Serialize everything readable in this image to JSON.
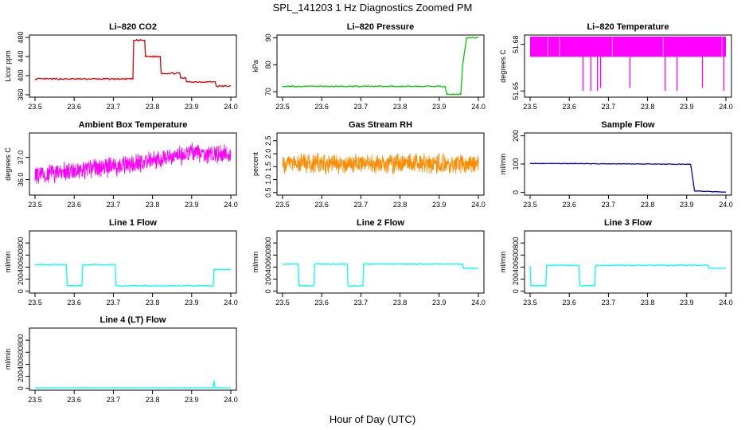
{
  "figure": {
    "title": "SPL_141203  1 Hz Diagnostics Zoomed PM",
    "xlabel": "Hour of Day (UTC)"
  },
  "chart_data": [
    {
      "type": "line",
      "title": "Li–820 CO2",
      "ylabel": "Licor ppm",
      "color": "#dd0000",
      "xlim": [
        23.5,
        24.0
      ],
      "ylim": [
        355,
        485
      ],
      "xticks": [
        "23.5",
        "23.6",
        "23.7",
        "23.8",
        "23.9",
        "24.0"
      ],
      "yticks": [
        {
          "v": 360,
          "label": "360"
        },
        {
          "v": 400,
          "label": "400"
        },
        {
          "v": 440,
          "label": "440"
        },
        {
          "v": 480,
          "label": "480"
        }
      ],
      "noise": 1.5,
      "points": [
        [
          23.5,
          393
        ],
        [
          23.6,
          393
        ],
        [
          23.7,
          393
        ],
        [
          23.75,
          393
        ],
        [
          23.752,
          474
        ],
        [
          23.78,
          474
        ],
        [
          23.782,
          440
        ],
        [
          23.82,
          440
        ],
        [
          23.822,
          405
        ],
        [
          23.87,
          405
        ],
        [
          23.872,
          395
        ],
        [
          23.885,
          395
        ],
        [
          23.887,
          387
        ],
        [
          23.96,
          387
        ],
        [
          23.963,
          378
        ],
        [
          24.0,
          378
        ]
      ]
    },
    {
      "type": "line",
      "title": "Li–820 Pressure",
      "ylabel": "kPa",
      "color": "#00cc00",
      "xlim": [
        23.5,
        24.0
      ],
      "ylim": [
        68,
        91
      ],
      "xticks": [
        "23.5",
        "23.6",
        "23.7",
        "23.8",
        "23.9",
        "24.0"
      ],
      "yticks": [
        {
          "v": 70,
          "label": "70"
        },
        {
          "v": 80,
          "label": "80"
        },
        {
          "v": 90,
          "label": "90"
        }
      ],
      "noise": 0.2,
      "points": [
        [
          23.5,
          72
        ],
        [
          23.7,
          72
        ],
        [
          23.9,
          72
        ],
        [
          23.915,
          72
        ],
        [
          23.92,
          69
        ],
        [
          23.955,
          69
        ],
        [
          23.96,
          80
        ],
        [
          23.97,
          90
        ],
        [
          24.0,
          90
        ]
      ]
    },
    {
      "type": "band",
      "title": "Li–820 Temperature",
      "ylabel": "degrees C",
      "color": "#ff00ff",
      "xlim": [
        23.5,
        24.0
      ],
      "ylim": [
        51.646,
        51.686
      ],
      "xticks": [
        "23.5",
        "23.6",
        "23.7",
        "23.8",
        "23.9",
        "24.0"
      ],
      "yticks": [
        {
          "v": 51.65,
          "label": "51.65"
        },
        {
          "v": 51.68,
          "label": "51.68"
        }
      ],
      "band": [
        51.672,
        51.685
      ],
      "dips": [
        [
          23.635,
          51.65
        ],
        [
          23.655,
          51.65
        ],
        [
          23.672,
          51.65
        ],
        [
          23.68,
          51.652
        ],
        [
          23.755,
          51.652
        ],
        [
          23.845,
          51.65
        ],
        [
          23.875,
          51.65
        ],
        [
          23.94,
          51.652
        ],
        [
          23.995,
          51.65
        ]
      ]
    },
    {
      "type": "noise",
      "title": "Ambient Box Temperature",
      "ylabel": "degrees C",
      "color": "#ff00ff",
      "xlim": [
        23.5,
        24.0
      ],
      "ylim": [
        35.3,
        38.1
      ],
      "xticks": [
        "23.5",
        "23.6",
        "23.7",
        "23.8",
        "23.9",
        "24.0"
      ],
      "yticks": [
        {
          "v": 36.0,
          "label": "36.0"
        },
        {
          "v": 37.0,
          "label": "37.0"
        }
      ],
      "trend": [
        [
          23.5,
          36.2
        ],
        [
          23.75,
          36.7
        ],
        [
          23.9,
          37.2
        ],
        [
          24.0,
          37.1
        ]
      ],
      "amp": 0.5
    },
    {
      "type": "noise",
      "title": "Gas Stream RH",
      "ylabel": "percent",
      "color": "#ff8c00",
      "xlim": [
        23.5,
        24.0
      ],
      "ylim": [
        0.4,
        2.8
      ],
      "xticks": [
        "23.5",
        "23.6",
        "23.7",
        "23.8",
        "23.9",
        "24.0"
      ],
      "yticks": [
        {
          "v": 0.5,
          "label": "0.5"
        },
        {
          "v": 1.0,
          "label": "1.0"
        },
        {
          "v": 1.5,
          "label": "1.5"
        },
        {
          "v": 2.0,
          "label": "2.0"
        },
        {
          "v": 2.5,
          "label": "2.5"
        }
      ],
      "trend": [
        [
          23.5,
          1.62
        ],
        [
          24.0,
          1.62
        ]
      ],
      "amp": 0.45
    },
    {
      "type": "line",
      "title": "Sample Flow",
      "ylabel": "ml/min",
      "color": "#0000cc",
      "xlim": [
        23.5,
        24.0
      ],
      "ylim": [
        -10,
        210
      ],
      "xticks": [
        "23.5",
        "23.6",
        "23.7",
        "23.8",
        "23.9",
        "24.0"
      ],
      "yticks": [
        {
          "v": 0,
          "label": "0"
        },
        {
          "v": 100,
          "label": "100"
        },
        {
          "v": 200,
          "label": "200"
        }
      ],
      "noise": 1.0,
      "points": [
        [
          23.5,
          102
        ],
        [
          23.7,
          101
        ],
        [
          23.91,
          99
        ],
        [
          23.92,
          5
        ],
        [
          24.0,
          0
        ]
      ]
    },
    {
      "type": "line",
      "title": "Line 1 Flow",
      "ylabel": "ml/min",
      "color": "#00ffff",
      "xlim": [
        23.5,
        24.0
      ],
      "ylim": [
        -30,
        1000
      ],
      "xticks": [
        "23.5",
        "23.6",
        "23.7",
        "23.8",
        "23.9",
        "24.0"
      ],
      "yticks": [
        {
          "v": 0,
          "label": "0"
        },
        {
          "v": 200,
          "label": "200"
        },
        {
          "v": 400,
          "label": "400"
        },
        {
          "v": 600,
          "label": "600"
        },
        {
          "v": 800,
          "label": "800"
        }
      ],
      "noise": 8,
      "points": [
        [
          23.5,
          440
        ],
        [
          23.58,
          440
        ],
        [
          23.582,
          90
        ],
        [
          23.62,
          90
        ],
        [
          23.622,
          440
        ],
        [
          23.705,
          440
        ],
        [
          23.707,
          90
        ],
        [
          23.955,
          90
        ],
        [
          23.957,
          360
        ],
        [
          24.0,
          360
        ]
      ]
    },
    {
      "type": "line",
      "title": "Line 2 Flow",
      "ylabel": "ml/min",
      "color": "#00ffff",
      "xlim": [
        23.5,
        24.0
      ],
      "ylim": [
        -30,
        1000
      ],
      "xticks": [
        "23.5",
        "23.6",
        "23.7",
        "23.8",
        "23.9",
        "24.0"
      ],
      "yticks": [
        {
          "v": 0,
          "label": "0"
        },
        {
          "v": 200,
          "label": "200"
        },
        {
          "v": 400,
          "label": "400"
        },
        {
          "v": 600,
          "label": "600"
        },
        {
          "v": 800,
          "label": "800"
        }
      ],
      "noise": 8,
      "points": [
        [
          23.5,
          450
        ],
        [
          23.54,
          450
        ],
        [
          23.542,
          90
        ],
        [
          23.58,
          90
        ],
        [
          23.582,
          450
        ],
        [
          23.665,
          450
        ],
        [
          23.667,
          90
        ],
        [
          23.705,
          90
        ],
        [
          23.707,
          450
        ],
        [
          23.96,
          450
        ],
        [
          23.962,
          380
        ],
        [
          24.0,
          380
        ]
      ]
    },
    {
      "type": "line",
      "title": "Line 3 Flow",
      "ylabel": "ml/min",
      "color": "#00ffff",
      "xlim": [
        23.5,
        24.0
      ],
      "ylim": [
        -30,
        1000
      ],
      "xticks": [
        "23.5",
        "23.6",
        "23.7",
        "23.8",
        "23.9",
        "24.0"
      ],
      "yticks": [
        {
          "v": 0,
          "label": "0"
        },
        {
          "v": 200,
          "label": "200"
        },
        {
          "v": 400,
          "label": "400"
        },
        {
          "v": 600,
          "label": "600"
        },
        {
          "v": 800,
          "label": "800"
        }
      ],
      "noise": 8,
      "points": [
        [
          23.5,
          420
        ],
        [
          23.502,
          90
        ],
        [
          23.54,
          90
        ],
        [
          23.542,
          430
        ],
        [
          23.625,
          430
        ],
        [
          23.627,
          90
        ],
        [
          23.665,
          90
        ],
        [
          23.667,
          430
        ],
        [
          23.955,
          430
        ],
        [
          23.957,
          380
        ],
        [
          24.0,
          380
        ]
      ]
    },
    {
      "type": "line",
      "title": "Line 4 (LT) Flow",
      "ylabel": "ml/min",
      "color": "#00ffff",
      "xlim": [
        23.5,
        24.0
      ],
      "ylim": [
        -30,
        1000
      ],
      "xticks": [
        "23.5",
        "23.6",
        "23.7",
        "23.8",
        "23.9",
        "24.0"
      ],
      "yticks": [
        {
          "v": 0,
          "label": "0"
        },
        {
          "v": 200,
          "label": "200"
        },
        {
          "v": 400,
          "label": "400"
        },
        {
          "v": 600,
          "label": "600"
        },
        {
          "v": 800,
          "label": "800"
        }
      ],
      "noise": 1,
      "points": [
        [
          23.5,
          10
        ],
        [
          23.955,
          10
        ],
        [
          23.957,
          130
        ],
        [
          23.96,
          10
        ],
        [
          24.0,
          10
        ]
      ]
    }
  ]
}
